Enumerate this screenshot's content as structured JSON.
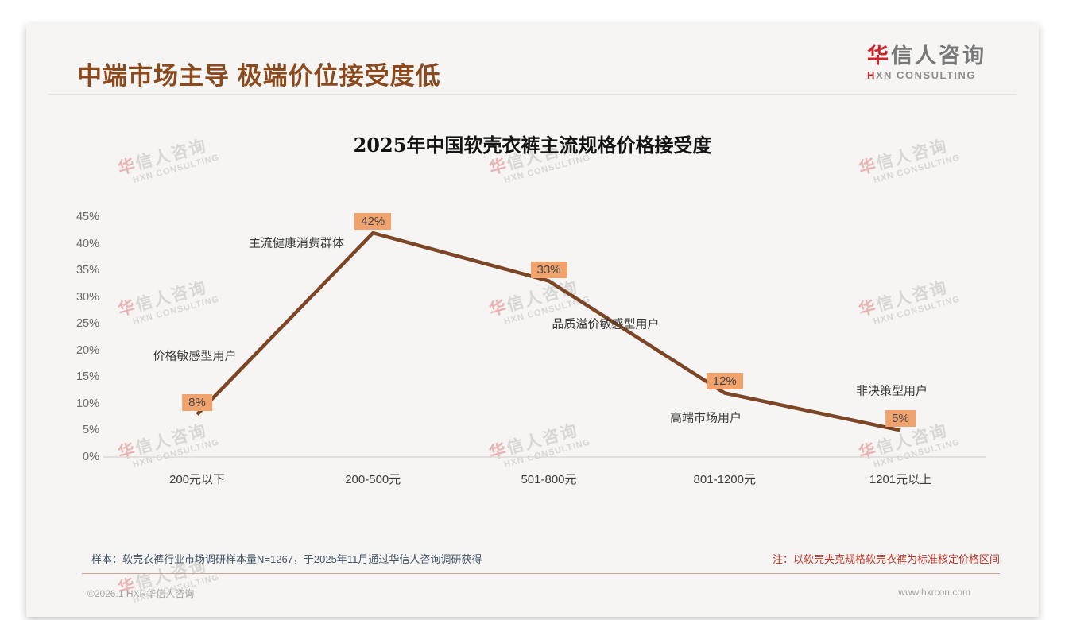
{
  "header": {
    "title": "中端市场主导 极端价位接受度低"
  },
  "logo": {
    "cn_first": "华",
    "cn_rest": "信人咨询",
    "en_first": "H",
    "en_rest": "XN CONSULTING"
  },
  "watermark": {
    "cn_first": "华",
    "cn_rest": "信人咨询",
    "en": "HXN CONSULTING"
  },
  "chart_data": {
    "type": "line",
    "title": "2025年中国软壳衣裤主流规格价格接受度",
    "categories": [
      "200元以下",
      "200-500元",
      "501-800元",
      "801-1200元",
      "1201元以上"
    ],
    "values": [
      8,
      42,
      33,
      12,
      5
    ],
    "data_labels": [
      "8%",
      "42%",
      "33%",
      "12%",
      "5%"
    ],
    "annotations": [
      "价格敏感型用户",
      "主流健康消费群体",
      "品质溢价敏感型用户",
      "高端市场用户",
      "非决策型用户"
    ],
    "yticks": [
      "45%",
      "40%",
      "35%",
      "30%",
      "25%",
      "20%",
      "15%",
      "10%",
      "5%",
      "0%"
    ],
    "ylim": [
      0,
      45
    ],
    "xlabel": "",
    "ylabel": "",
    "grid": false,
    "legend": false,
    "line_color": "#7C4526",
    "label_bg": "#F0A36C"
  },
  "footer": {
    "sample_note": "样本：软壳衣裤行业市场调研样本量N=1267，于2025年11月通过华信人咨询调研获得",
    "price_note": "注：以软壳夹克规格软壳衣裤为标准核定价格区间",
    "copyright": "©2026.1 HXR华信人咨询",
    "website": "www.hxrcon.com"
  },
  "colors": {
    "title_brown": "#8B4A1E",
    "line_brown": "#7C4526",
    "label_bg": "#F0A36C",
    "note_red": "#C23428",
    "sample_blue": "#44546A",
    "logo_red": "#C9252B",
    "logo_gray": "#787878",
    "watermark_pink": "#E9B3B3",
    "watermark_gray": "#D9D7D4"
  }
}
